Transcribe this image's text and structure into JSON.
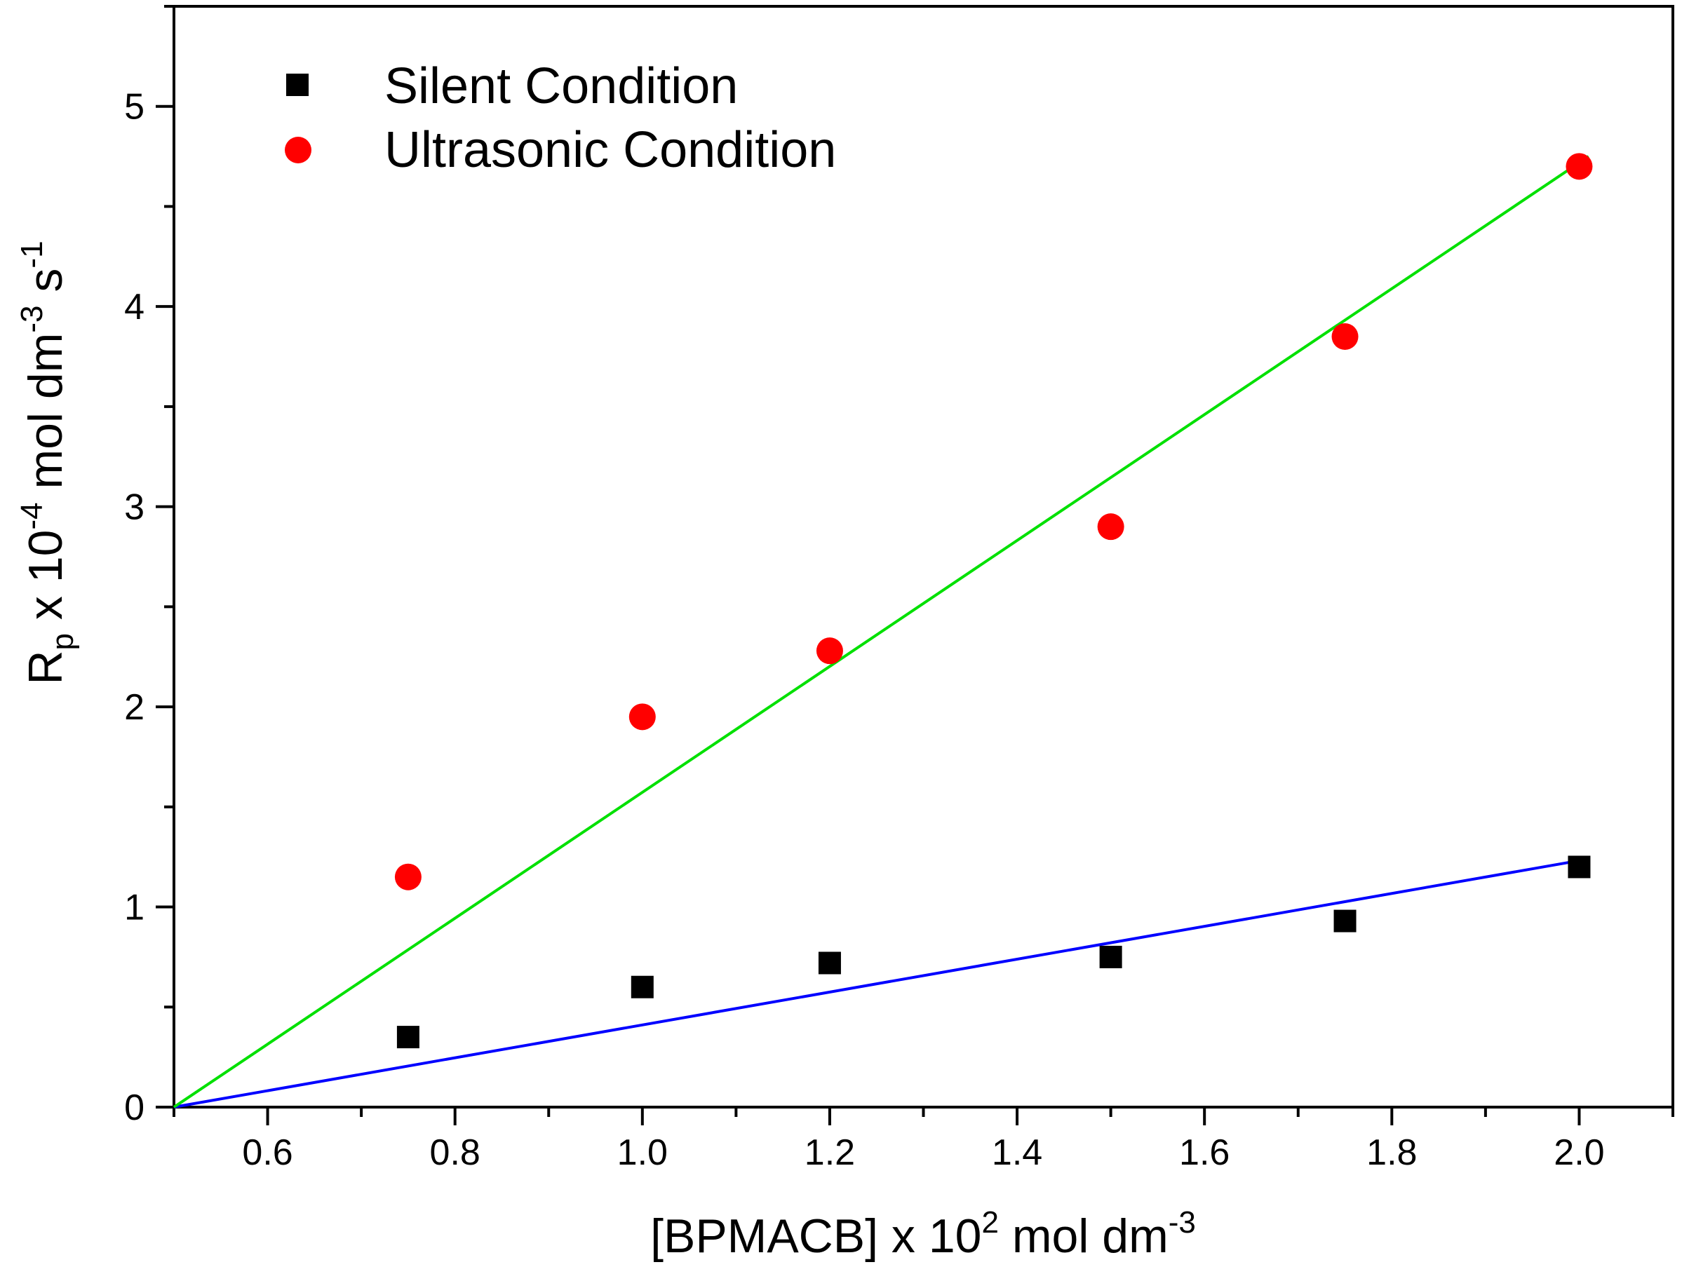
{
  "chart_data": {
    "type": "scatter",
    "title": "",
    "xlabel": {
      "main": "[BPMACB] x 10",
      "exp": "2",
      "rest": " mol dm",
      "exp2": "-3"
    },
    "ylabel": {
      "base": "R",
      "sub": "p",
      "mid": " x 10",
      "exp": "-4",
      "unit1": " mol dm",
      "exp2": "-3",
      "unit2": " s",
      "exp3": "-1"
    },
    "xlim": [
      0.5,
      2.1
    ],
    "ylim": [
      0,
      5.5
    ],
    "x_ticks": [
      0.6,
      0.8,
      1.0,
      1.2,
      1.4,
      1.6,
      1.8,
      2.0
    ],
    "x_tick_labels": [
      "0.6",
      "0.8",
      "1.0",
      "1.2",
      "1.4",
      "1.6",
      "1.8",
      "2.0"
    ],
    "y_ticks": [
      0,
      1,
      2,
      3,
      4,
      5
    ],
    "y_tick_labels": [
      "0",
      "1",
      "2",
      "3",
      "4",
      "5"
    ],
    "legend_position": "top-left",
    "series": [
      {
        "name": "Silent Condition",
        "marker": "square",
        "color": "#000000",
        "x": [
          0.75,
          1.0,
          1.2,
          1.5,
          1.75,
          2.0
        ],
        "y": [
          0.35,
          0.6,
          0.72,
          0.75,
          0.93,
          1.2
        ],
        "fit_line": {
          "color": "#0000ff",
          "x": [
            0.5,
            2.01
          ],
          "y": [
            0.0,
            1.24
          ]
        }
      },
      {
        "name": "Ultrasonic Condition",
        "marker": "circle",
        "color": "#ff0000",
        "x": [
          0.75,
          1.0,
          1.2,
          1.5,
          1.75,
          2.0
        ],
        "y": [
          1.15,
          1.95,
          2.28,
          2.9,
          3.85,
          4.7
        ],
        "fit_line": {
          "color": "#00e000",
          "x": [
            0.5,
            2.01
          ],
          "y": [
            0.0,
            4.75
          ]
        }
      }
    ]
  }
}
